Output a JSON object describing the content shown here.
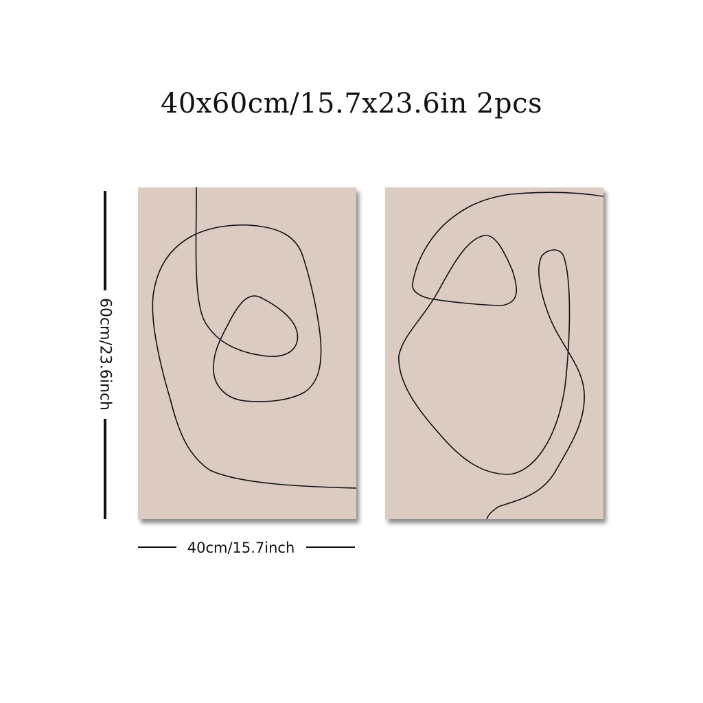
{
  "title": "40x60cm/15.7x23.6in 2pcs",
  "dimensions": {
    "height_label": "60cm/23.6inch",
    "width_label": "40cm/15.7inch"
  },
  "panel_color": "#dbcbc1",
  "line_color": "#111111"
}
